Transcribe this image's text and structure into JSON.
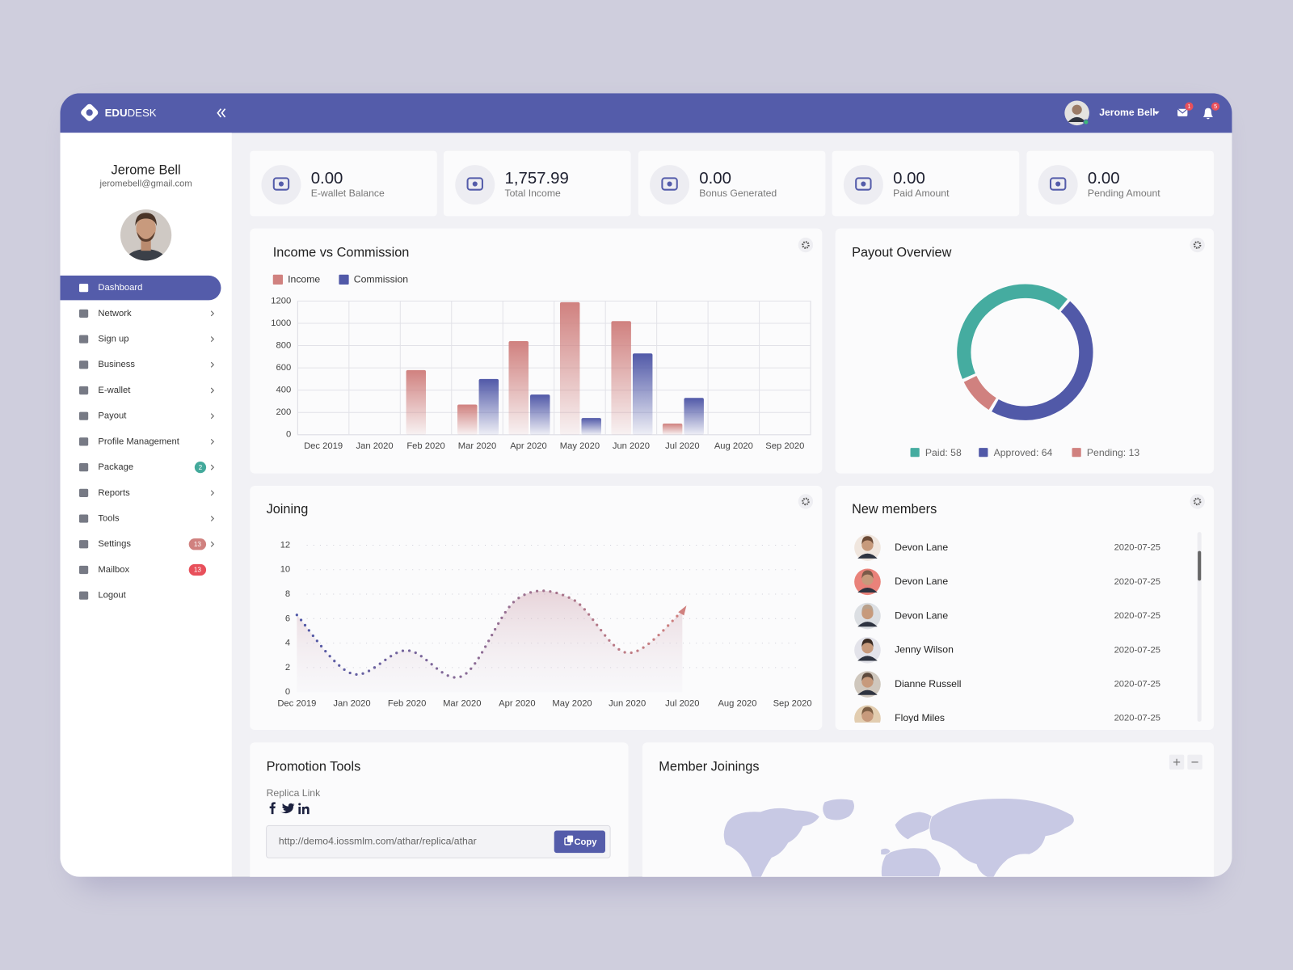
{
  "brand": {
    "bold": "EDU",
    "light": "DESK"
  },
  "topbar": {
    "user": "Jerome Bell",
    "mail_badge": "1",
    "notification_badge": "5"
  },
  "profile": {
    "name": "Jerome Bell",
    "email": "jeromebell@gmail.com"
  },
  "menu": [
    {
      "label": "Dashboard",
      "active": true
    },
    {
      "label": "Network",
      "submenu": true
    },
    {
      "label": "Sign up",
      "submenu": true
    },
    {
      "label": "Business",
      "submenu": true
    },
    {
      "label": "E-wallet",
      "submenu": true
    },
    {
      "label": "Payout",
      "submenu": true
    },
    {
      "label": "Profile Management",
      "submenu": true
    },
    {
      "label": "Package",
      "submenu": true,
      "badge": "2",
      "badge_color": "#43a99b"
    },
    {
      "label": "Reports",
      "submenu": true
    },
    {
      "label": "Tools",
      "submenu": true
    },
    {
      "label": "Settings",
      "submenu": true,
      "badge": "13",
      "badge_color": "#d0817f"
    },
    {
      "label": "Mailbox",
      "badge": "13",
      "badge_color": "#e8505b"
    },
    {
      "label": "Logout"
    }
  ],
  "stats": [
    {
      "value": "0.00",
      "label": "E-wallet Balance"
    },
    {
      "value": "1,757.99",
      "label": "Total Income"
    },
    {
      "value": "0.00",
      "label": "Bonus Generated"
    },
    {
      "value": "0.00",
      "label": "Paid Amount"
    },
    {
      "value": "0.00",
      "label": "Pending Amount"
    }
  ],
  "chart_data": [
    {
      "type": "bar",
      "title": "Income vs Commission",
      "categories": [
        "Dec 2019",
        "Jan 2020",
        "Feb 2020",
        "Mar 2020",
        "Apr 2020",
        "May 2020",
        "Jun 2020",
        "Jul 2020",
        "Aug 2020",
        "Sep 2020"
      ],
      "series": [
        {
          "name": "Income",
          "color": "#d0817f",
          "values": [
            0,
            0,
            580,
            270,
            840,
            1190,
            1020,
            100,
            0,
            0
          ]
        },
        {
          "name": "Commission",
          "color": "#5159a8",
          "values": [
            0,
            0,
            0,
            500,
            360,
            150,
            730,
            330,
            0,
            0
          ]
        }
      ],
      "ylim": [
        0,
        1200
      ],
      "yticks": [
        0,
        200,
        400,
        600,
        800,
        1000,
        1200
      ],
      "grid": true
    },
    {
      "type": "pie",
      "title": "Payout Overview",
      "categories": [
        "Paid: 58",
        "Approved: 64",
        "Pending: 13"
      ],
      "values": [
        58,
        64,
        13
      ],
      "colors": [
        "#45aca0",
        "#5159a8",
        "#d0817f"
      ]
    },
    {
      "type": "line",
      "title": "Joining",
      "categories": [
        "Dec 2019",
        "Jan 2020",
        "Feb 2020",
        "Mar 2020",
        "Apr 2020",
        "May 2020",
        "Jun 2020",
        "Jul 2020",
        "Aug 2020",
        "Sep 2020"
      ],
      "values": [
        6.3,
        1.5,
        3.4,
        1.3,
        7.6,
        7.6,
        3.2,
        6.6,
        null,
        null
      ],
      "color": "#d0817f",
      "ylim": [
        0,
        12
      ],
      "yticks": [
        0,
        2,
        4,
        6,
        8,
        10,
        12
      ],
      "grid": true
    }
  ],
  "new_members": {
    "title": "New members",
    "rows": [
      {
        "name": "Devon Lane",
        "date": "2020-07-25"
      },
      {
        "name": "Devon Lane",
        "date": "2020-07-25"
      },
      {
        "name": "Devon Lane",
        "date": "2020-07-25"
      },
      {
        "name": "Jenny Wilson",
        "date": "2020-07-25"
      },
      {
        "name": "Dianne Russell",
        "date": "2020-07-25"
      },
      {
        "name": "Floyd Miles",
        "date": "2020-07-25"
      }
    ]
  },
  "promotion_tools": {
    "title": "Promotion Tools",
    "label": "Replica Link",
    "url": "http://demo4.iossmlm.com/athar/replica/athar",
    "button": "Copy"
  },
  "member_joinings": {
    "title": "Member Joinings"
  }
}
